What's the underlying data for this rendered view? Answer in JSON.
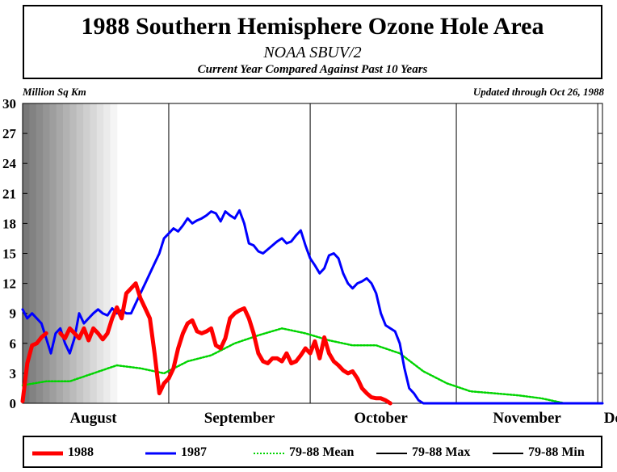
{
  "chart_data": {
    "type": "line",
    "title": "1988 Southern Hemisphere Ozone Hole Area",
    "subtitle": "NOAA SBUV/2",
    "subtitle2": "Current Year Compared Against Past 10 Years",
    "ylabel": "Million Sq Km",
    "updated": "Updated through Oct 26, 1988",
    "ylim": [
      0,
      30
    ],
    "yticks": [
      "0",
      "3",
      "6",
      "9",
      "12",
      "15",
      "18",
      "21",
      "24",
      "27",
      "30"
    ],
    "xlim": [
      213,
      336
    ],
    "month_labels": [
      {
        "label": "August",
        "day": 228
      },
      {
        "label": "September",
        "day": 259
      },
      {
        "label": "October",
        "day": 289
      },
      {
        "label": "November",
        "day": 320
      },
      {
        "label": "Decem",
        "day": 341
      }
    ],
    "month_boundaries": [
      244,
      274,
      305,
      335
    ],
    "shaded_until_day": 233,
    "colors": {
      "y1988": "#ff0000",
      "y1987": "#0000ff",
      "mean": "#00d400",
      "max": "#000000",
      "min": "#000000"
    },
    "series": [
      {
        "name": "1988",
        "x": [
          213,
          214,
          215,
          216,
          217,
          218,
          219,
          220,
          221,
          222,
          223,
          224,
          225,
          226,
          227,
          228,
          229,
          230,
          231,
          232,
          233,
          234,
          235,
          236,
          237,
          238,
          239,
          240,
          241,
          242,
          243,
          244,
          245,
          246,
          247,
          248,
          249,
          250,
          251,
          252,
          253,
          254,
          255,
          256,
          257,
          258,
          259,
          260,
          261,
          262,
          263,
          264,
          265,
          266,
          267,
          268,
          269,
          270,
          271,
          272,
          273,
          274,
          275,
          276,
          277,
          278,
          279,
          280,
          281,
          282,
          283,
          284,
          285,
          286,
          287,
          288,
          289,
          290,
          291,
          292,
          293,
          294,
          295,
          296,
          297,
          298,
          299,
          300
        ],
        "values": [
          0.2,
          4,
          5.8,
          6,
          6.6,
          7,
          null,
          null,
          7,
          6.5,
          7.5,
          7,
          6.5,
          7.5,
          6.3,
          7.5,
          7,
          6.4,
          7,
          8.5,
          9.6,
          8.5,
          11,
          11.5,
          12,
          10.5,
          9.5,
          8.5,
          5,
          1,
          2,
          2.5,
          3.5,
          5.5,
          7,
          8,
          8.3,
          7.2,
          7,
          7.2,
          7.5,
          5.8,
          5.5,
          6.5,
          8.5,
          9,
          9.3,
          9.5,
          8.5,
          7,
          5,
          4.2,
          4,
          4.5,
          4.5,
          4.2,
          5,
          4,
          4.2,
          4.8,
          5.5,
          5,
          6.2,
          4.5,
          6.6,
          5,
          4.2,
          3.8,
          3.3,
          3,
          3.2,
          2.5,
          1.5,
          1,
          0.6,
          0.5,
          0.5,
          0.3,
          0,
          null,
          null,
          null,
          null,
          null,
          null,
          null,
          null,
          null
        ]
      },
      {
        "name": "1987",
        "x": [
          213,
          214,
          215,
          216,
          217,
          218,
          219,
          220,
          221,
          222,
          223,
          224,
          225,
          226,
          227,
          228,
          229,
          230,
          231,
          232,
          233,
          234,
          235,
          236,
          237,
          238,
          239,
          240,
          241,
          242,
          243,
          244,
          245,
          246,
          247,
          248,
          249,
          250,
          251,
          252,
          253,
          254,
          255,
          256,
          257,
          258,
          259,
          260,
          261,
          262,
          263,
          264,
          265,
          266,
          267,
          268,
          269,
          270,
          271,
          272,
          273,
          274,
          275,
          276,
          277,
          278,
          279,
          280,
          281,
          282,
          283,
          284,
          285,
          286,
          287,
          288,
          289,
          290,
          291,
          292,
          293,
          294,
          295,
          296,
          297,
          298,
          299,
          300,
          301,
          302,
          303,
          304,
          305,
          306,
          307,
          308,
          309,
          310,
          311,
          312,
          313,
          314,
          315,
          316,
          317,
          318,
          319,
          320,
          321,
          322,
          323,
          324,
          325,
          326,
          327,
          328,
          329,
          330,
          331,
          332,
          333,
          334,
          335,
          336
        ],
        "values": [
          9.4,
          8.5,
          9,
          8.5,
          8,
          6.5,
          5,
          7,
          7.5,
          6,
          5,
          6.5,
          9,
          8,
          8.5,
          9,
          9.4,
          9,
          8.8,
          9.5,
          9,
          9.3,
          9,
          9,
          10,
          11,
          12,
          13,
          14,
          15,
          16.5,
          17,
          17.5,
          17.2,
          17.8,
          18.5,
          18,
          18.3,
          18.5,
          18.8,
          19.2,
          19,
          18.2,
          19.2,
          18.8,
          18.5,
          19.3,
          18,
          16,
          15.8,
          15.2,
          15,
          15.4,
          15.8,
          16.2,
          16.5,
          16,
          16.2,
          16.8,
          17.3,
          15.8,
          14.5,
          13.8,
          13,
          13.5,
          14.8,
          15,
          14.5,
          13,
          12,
          11.5,
          12,
          12.2,
          12.5,
          12,
          11,
          9,
          7.8,
          7.5,
          7.2,
          6,
          3.5,
          1.5,
          1,
          0.3,
          0,
          0,
          0,
          0,
          0,
          0,
          0,
          0,
          0,
          0,
          0,
          0,
          0,
          0,
          0,
          0,
          0,
          0,
          0,
          0,
          0,
          0,
          0,
          0,
          0,
          0,
          0,
          0,
          0,
          0,
          0,
          0,
          0,
          0,
          0,
          0,
          0,
          0,
          0
        ]
      },
      {
        "name": "79-88 Mean",
        "x": [
          213,
          218,
          223,
          228,
          233,
          238,
          243,
          248,
          253,
          258,
          263,
          268,
          273,
          278,
          283,
          288,
          293,
          298,
          303,
          308,
          313,
          318,
          323,
          328,
          333
        ],
        "values": [
          1.8,
          2.2,
          2.2,
          3,
          3.8,
          3.5,
          3,
          4.2,
          4.8,
          6,
          6.8,
          7.5,
          7,
          6.3,
          5.8,
          5.8,
          5,
          3.2,
          2,
          1.2,
          1,
          0.8,
          0.5,
          0,
          0
        ]
      },
      {
        "name": "79-88 Max",
        "x": [],
        "values": []
      },
      {
        "name": "79-88 Min",
        "x": [],
        "values": []
      }
    ],
    "legend": [
      "1988",
      "1987",
      "79-88 Mean",
      "79-88 Max",
      "79-88 Min"
    ],
    "legend_placement": "bottom",
    "grid": false
  }
}
